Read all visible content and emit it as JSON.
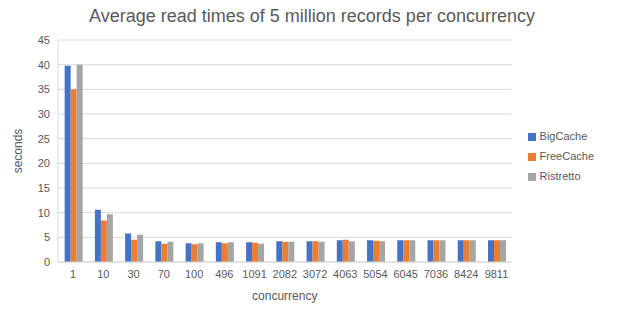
{
  "chart_data": {
    "type": "bar",
    "title": "Average read times of 5 million records per concurrency",
    "x_label": "concurrency",
    "y_label": "seconds",
    "categories": [
      "1",
      "10",
      "30",
      "70",
      "100",
      "496",
      "1091",
      "2082",
      "3072",
      "4063",
      "5054",
      "6045",
      "7036",
      "8424",
      "9811"
    ],
    "series": [
      {
        "name": "BigCache",
        "color": "#4472c4",
        "values": [
          39.8,
          10.6,
          5.8,
          4.2,
          3.8,
          4.0,
          4.0,
          4.2,
          4.2,
          4.4,
          4.4,
          4.4,
          4.4,
          4.4,
          4.4
        ]
      },
      {
        "name": "FreeCache",
        "color": "#ed7d31",
        "values": [
          35.0,
          8.4,
          4.5,
          3.7,
          3.6,
          3.8,
          3.9,
          4.1,
          4.2,
          4.5,
          4.3,
          4.4,
          4.4,
          4.4,
          4.4
        ]
      },
      {
        "name": "Ristretto",
        "color": "#a5a5a5",
        "values": [
          40.0,
          9.7,
          5.5,
          4.1,
          3.8,
          4.0,
          3.7,
          4.1,
          4.1,
          4.2,
          4.2,
          4.4,
          4.4,
          4.4,
          4.4
        ]
      }
    ],
    "ylim": [
      0,
      45
    ],
    "yticks": [
      0,
      5,
      10,
      15,
      20,
      25,
      30,
      35,
      40,
      45
    ],
    "grid": true,
    "legend": "right"
  }
}
